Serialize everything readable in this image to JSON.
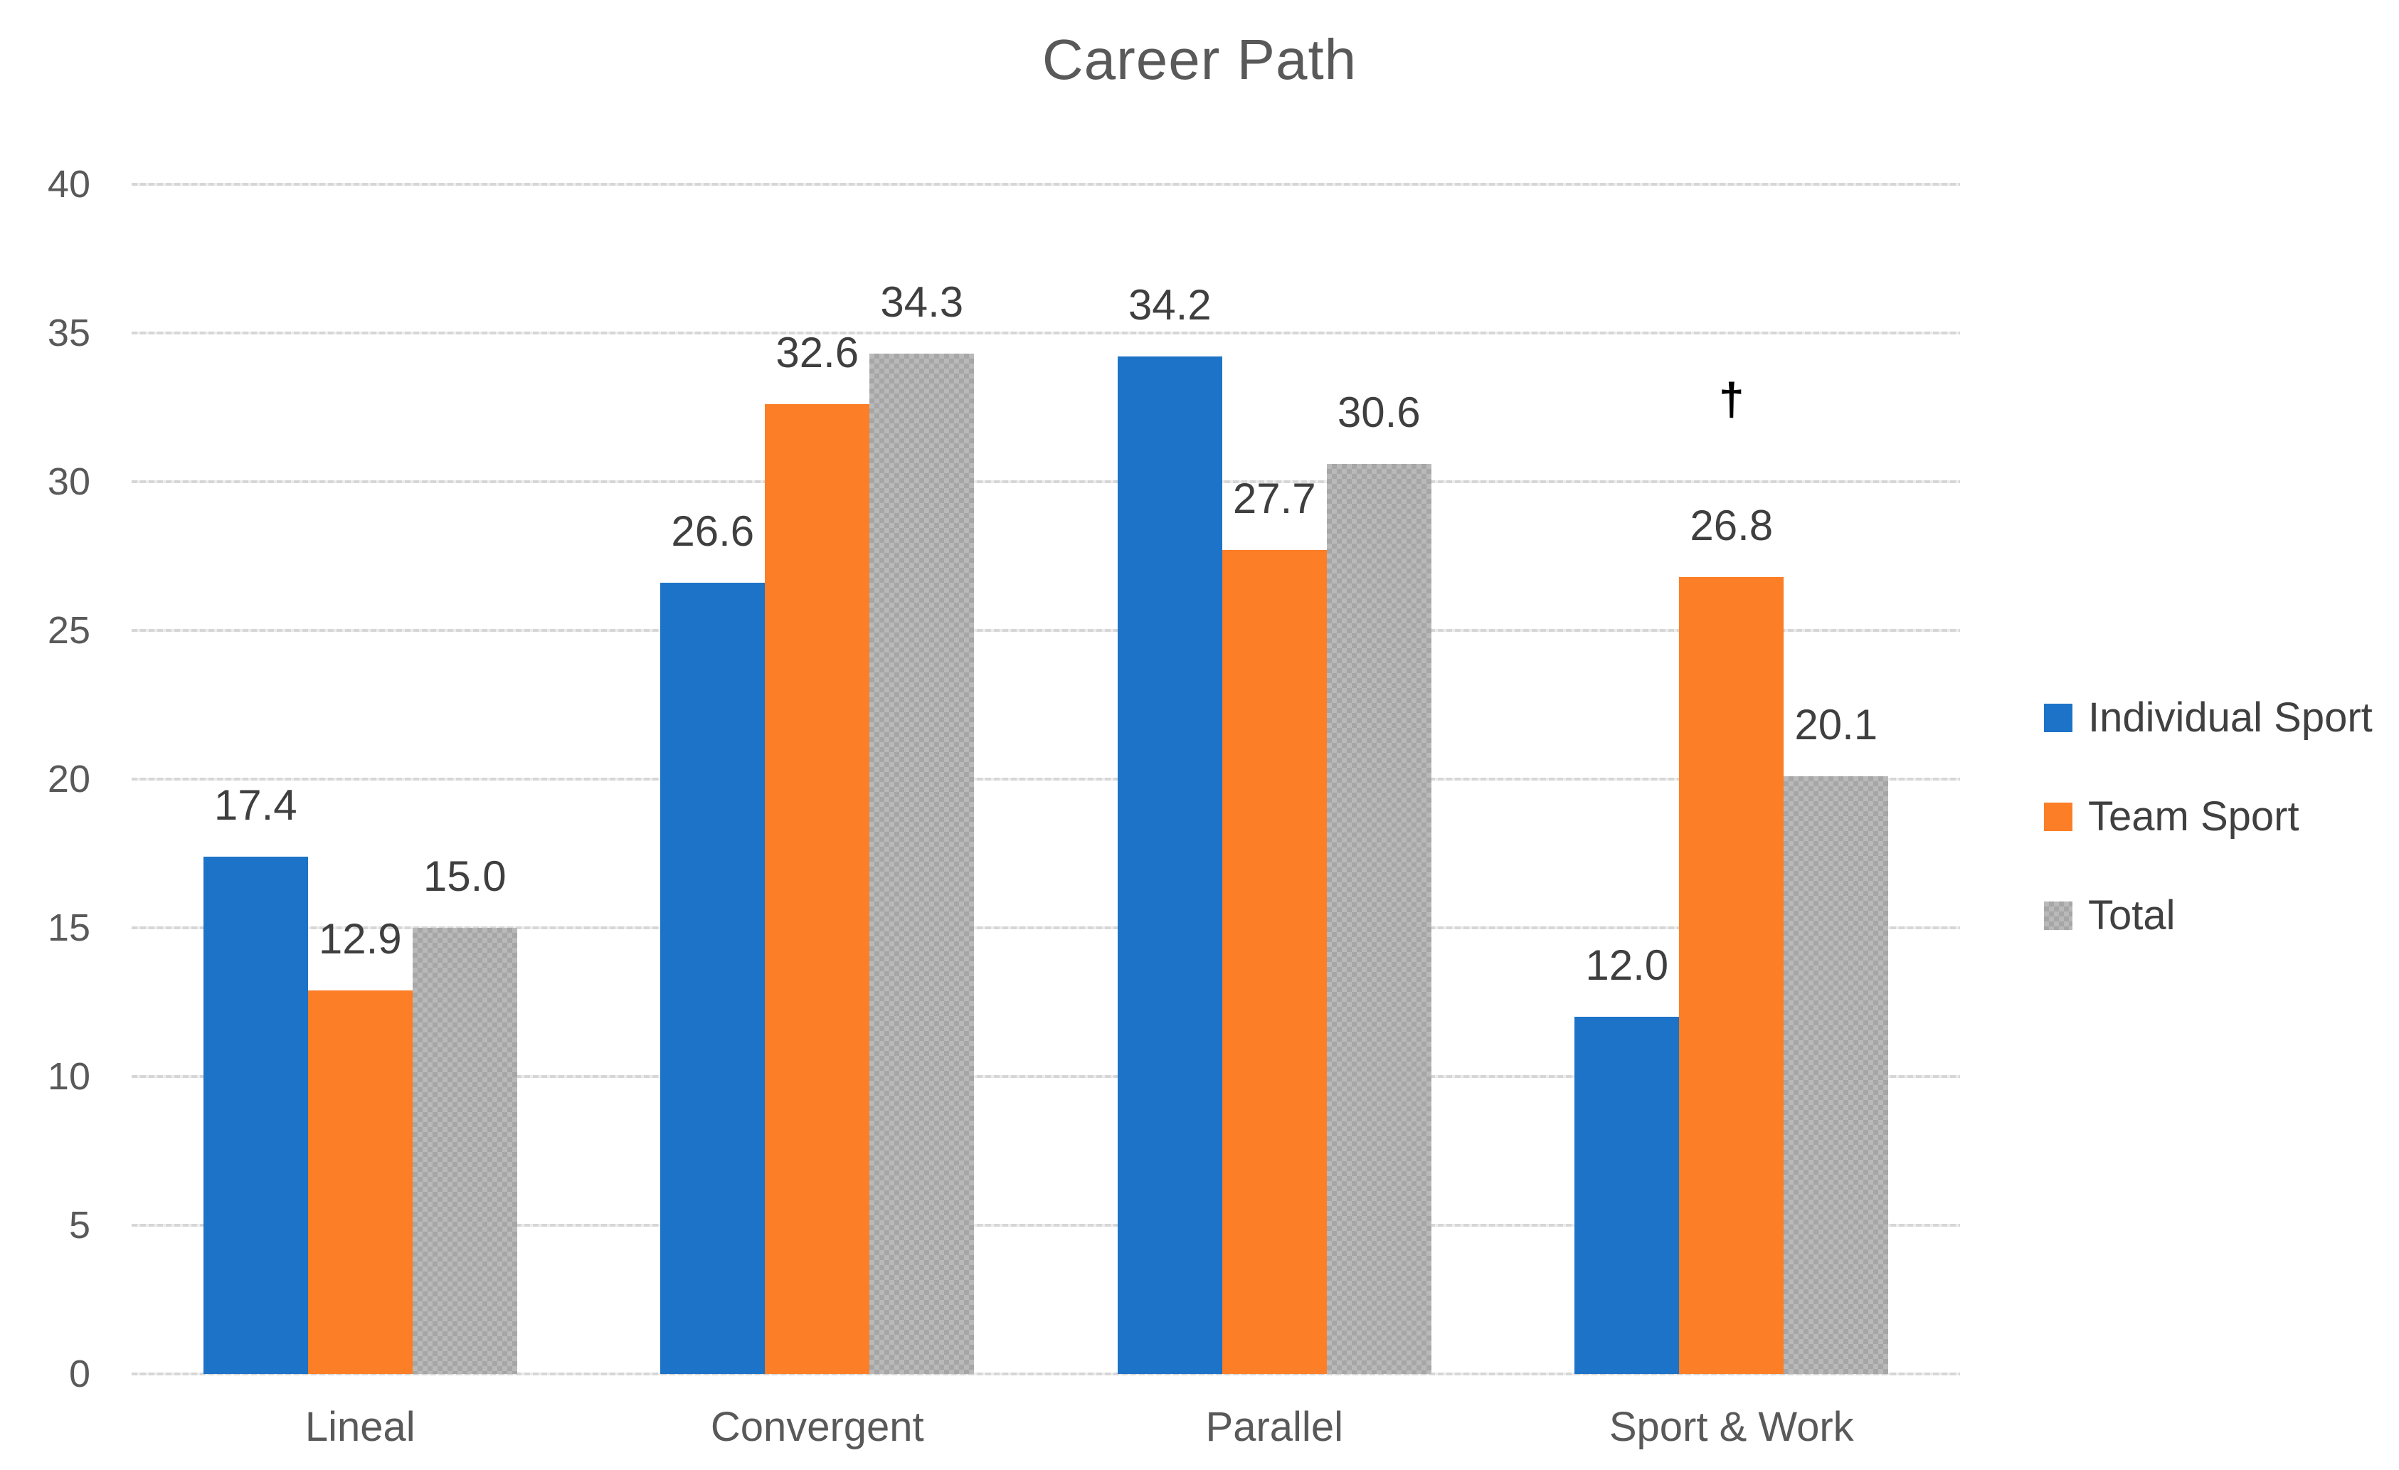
{
  "title": "Career Path",
  "colors": {
    "gridline": "#d6d6d6",
    "axis_text": "#595959",
    "title_text": "#595959",
    "value_label_text": "#3f3f3f",
    "legend_text": "#404040",
    "annotation_text": "#000000",
    "background": "#ffffff"
  },
  "chart_data": {
    "type": "bar",
    "title": "Career Path",
    "categories": [
      "Lineal",
      "Convergent",
      "Parallel",
      "Sport & Work"
    ],
    "series": [
      {
        "name": "Individual Sport",
        "color": "#1c73c7",
        "pattern": false,
        "values": [
          17.4,
          26.6,
          34.2,
          12.0
        ]
      },
      {
        "name": "Team Sport",
        "color": "#fc7e27",
        "pattern": false,
        "values": [
          12.9,
          32.6,
          27.7,
          26.8
        ]
      },
      {
        "name": "Total",
        "color": "#b9b9b9",
        "pattern": true,
        "pattern_accent": "#a6a6a6",
        "values": [
          15.0,
          34.3,
          30.6,
          20.1
        ]
      }
    ],
    "ylim": [
      0,
      40
    ],
    "yticks": [
      40,
      35,
      30,
      25,
      20,
      15,
      10,
      5,
      0
    ],
    "grid": "horizontal-dotted",
    "legend_position": "right",
    "value_label_format": "one_decimal",
    "annotations": [
      {
        "series": "Team Sport",
        "category": "Sport & Work",
        "symbol": "†"
      }
    ]
  }
}
